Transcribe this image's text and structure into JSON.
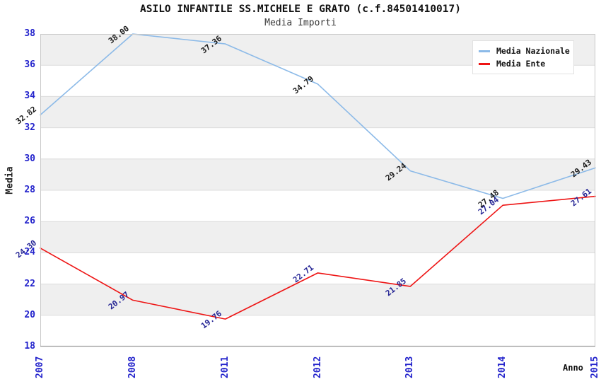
{
  "colors": {
    "tick": "#2424CC",
    "band": "#EFEFEF",
    "band_alt": "#FFFFFF",
    "grid": "#DCDCDC",
    "spine": "#C9C9C9",
    "axis_bottom": "#9A9A9A",
    "title": "#111111",
    "subtitle": "#3A3A3A"
  },
  "chart_data": {
    "type": "line",
    "title": "ASILO INFANTILE SS.MICHELE E GRATO (c.f.84501410017)",
    "subtitle": "Media Importi",
    "xlabel": "Anno",
    "ylabel": "Media",
    "x": [
      "2007",
      "2008",
      "2011",
      "2012",
      "2013",
      "2014",
      "2015"
    ],
    "series": [
      {
        "name": "Media Nazionale",
        "color": "#8CBAE8",
        "label_color": "#1A1A1A",
        "values": [
          32.82,
          38.0,
          37.36,
          34.79,
          29.24,
          27.48,
          29.43
        ],
        "labels": [
          "32.82",
          "38.00",
          "37.36",
          "34.79",
          "29.24",
          "27.48",
          "29.43"
        ]
      },
      {
        "name": "Media Ente",
        "color": "#EE1414",
        "label_color": "#232394",
        "values": [
          24.3,
          20.97,
          19.76,
          22.71,
          21.85,
          27.04,
          27.61
        ],
        "labels": [
          "24.30",
          "20.97",
          "19.76",
          "22.71",
          "21.85",
          "27.04",
          "27.61"
        ]
      }
    ],
    "ylim": [
      18,
      38
    ],
    "ytick_step": 2,
    "legend_position": "top-right",
    "grid": "horizontal-bands"
  }
}
